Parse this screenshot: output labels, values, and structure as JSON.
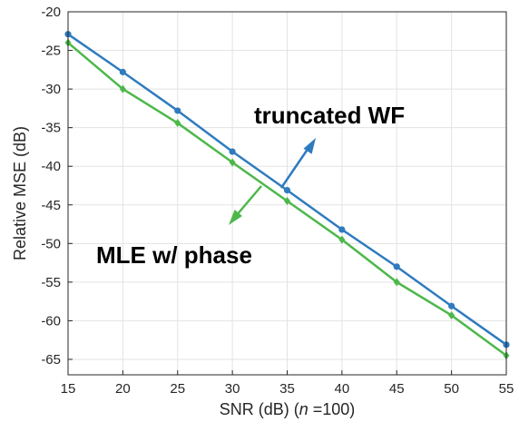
{
  "chart_data": {
    "type": "line",
    "xlabel_prefix": "SNR (dB) (",
    "xlabel_var": "n",
    "xlabel_suffix": " =100)",
    "ylabel": "Relative MSE (dB)",
    "xlim": [
      15,
      55
    ],
    "ylim": [
      -67,
      -20
    ],
    "xticks": [
      15,
      20,
      25,
      30,
      35,
      40,
      45,
      50,
      55
    ],
    "yticks": [
      -20,
      -25,
      -30,
      -35,
      -40,
      -45,
      -50,
      -55,
      -60,
      -65
    ],
    "grid": true,
    "x": [
      15,
      20,
      25,
      30,
      35,
      40,
      45,
      50,
      55
    ],
    "series": [
      {
        "name": "truncated WF",
        "color": "#2f7bbf",
        "marker": "circle",
        "values": [
          -22.9,
          -27.8,
          -32.8,
          -38.1,
          -43.1,
          -48.2,
          -53.0,
          -58.1,
          -63.1
        ]
      },
      {
        "name": "MLE w/ phase",
        "color": "#4db84a",
        "marker": "diamond",
        "values": [
          -24.0,
          -30.0,
          -34.4,
          -39.5,
          -44.5,
          -49.5,
          -55.0,
          -59.3,
          -64.5
        ]
      }
    ],
    "annotations": [
      {
        "text": "truncated WF",
        "series": 0
      },
      {
        "text": "MLE w/ phase",
        "series": 1
      }
    ]
  }
}
